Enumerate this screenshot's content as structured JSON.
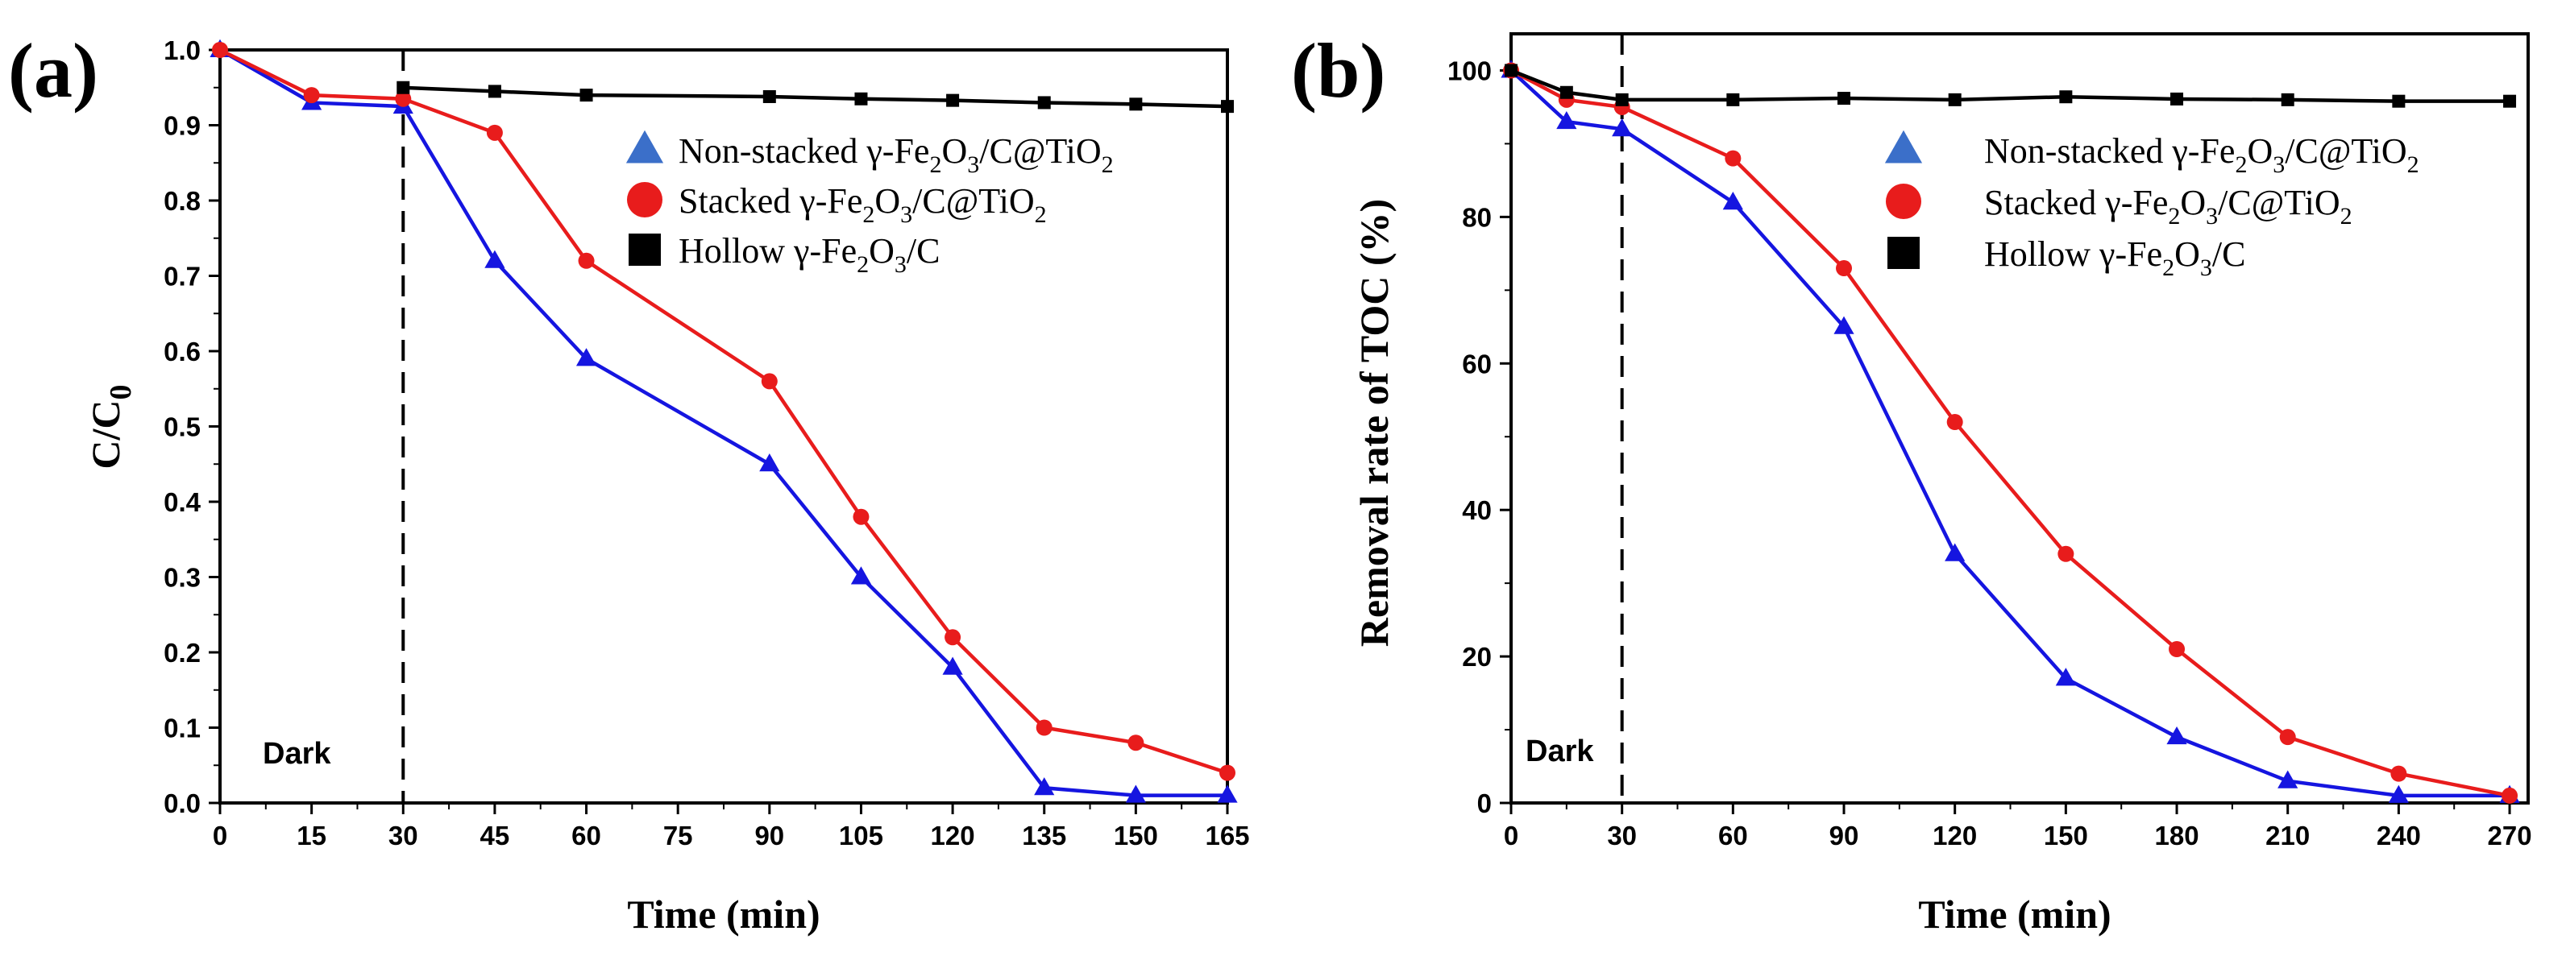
{
  "chart_data": [
    {
      "type": "line",
      "panel_label": "(a)",
      "xlabel": "Time (min)",
      "ylabel_main": "C/C",
      "ylabel_sub": "0",
      "xlim": [
        0,
        165
      ],
      "ylim": [
        0,
        1.0
      ],
      "xticks": [
        0,
        15,
        30,
        45,
        60,
        75,
        90,
        105,
        120,
        135,
        150,
        165
      ],
      "xtick_labels": [
        "0",
        "15",
        "30",
        "45",
        "60",
        "75",
        "90",
        "105",
        "120",
        "135",
        "150",
        "165"
      ],
      "yticks": [
        0,
        0.1,
        0.2,
        0.3,
        0.4,
        0.5,
        0.6,
        0.7,
        0.8,
        0.9,
        1.0
      ],
      "ytick_labels": [
        "0.0",
        "0.1",
        "0.2",
        "0.3",
        "0.4",
        "0.5",
        "0.6",
        "0.7",
        "0.8",
        "0.9",
        "1.0"
      ],
      "dark_line_x": 30,
      "annotation": "Dark",
      "legend_position": "top-right",
      "series": [
        {
          "name": "Non-stacked γ-Fe₂O₃/C@TiO₂",
          "legend_parts": [
            [
              "Non-stacked γ-Fe",
              "n"
            ],
            [
              "2",
              "s"
            ],
            [
              "O",
              "n"
            ],
            [
              "3",
              "s"
            ],
            [
              "/C@TiO",
              "n"
            ],
            [
              "2",
              "s"
            ]
          ],
          "color": "#1515e0",
          "legend_color": "#3b6fc9",
          "marker": "triangle",
          "x": [
            0,
            15,
            30,
            45,
            60,
            90,
            105,
            120,
            135,
            150,
            165
          ],
          "y": [
            1.0,
            0.93,
            0.925,
            0.72,
            0.59,
            0.45,
            0.3,
            0.18,
            0.02,
            0.01,
            0.01
          ]
        },
        {
          "name": "Stacked γ-Fe₂O₃/C@TiO₂",
          "legend_parts": [
            [
              "Stacked γ-Fe",
              "n"
            ],
            [
              "2",
              "s"
            ],
            [
              "O",
              "n"
            ],
            [
              "3",
              "s"
            ],
            [
              "/C@TiO",
              "n"
            ],
            [
              "2",
              "s"
            ]
          ],
          "color": "#e81c1c",
          "legend_color": "#e81c1c",
          "marker": "circle",
          "x": [
            0,
            15,
            30,
            45,
            60,
            90,
            105,
            120,
            135,
            150,
            165
          ],
          "y": [
            1.0,
            0.94,
            0.935,
            0.89,
            0.72,
            0.56,
            0.38,
            0.22,
            0.1,
            0.08,
            0.04
          ]
        },
        {
          "name": "Hollow γ-Fe₂O₃/C",
          "legend_parts": [
            [
              "Hollow γ-Fe",
              "n"
            ],
            [
              "2",
              "s"
            ],
            [
              "O",
              "n"
            ],
            [
              "3",
              "s"
            ],
            [
              "/C",
              "n"
            ]
          ],
          "color": "#000000",
          "legend_color": "#000000",
          "marker": "square",
          "x": [
            30,
            45,
            60,
            90,
            105,
            120,
            135,
            150,
            165
          ],
          "y": [
            0.95,
            0.945,
            0.94,
            0.938,
            0.935,
            0.933,
            0.93,
            0.928,
            0.925
          ]
        }
      ]
    },
    {
      "type": "line",
      "panel_label": "(b)",
      "xlabel": "Time (min)",
      "ylabel_main": "Removal rate of TOC (%)",
      "ylabel_sub": "",
      "xlim": [
        0,
        275
      ],
      "ylim": [
        0,
        105
      ],
      "xticks": [
        0,
        30,
        60,
        90,
        120,
        150,
        180,
        210,
        240,
        270
      ],
      "xtick_labels": [
        "0",
        "30",
        "60",
        "90",
        "120",
        "150",
        "180",
        "210",
        "240",
        "270"
      ],
      "yticks": [
        0,
        20,
        40,
        60,
        80,
        100
      ],
      "ytick_labels": [
        "0",
        "20",
        "40",
        "60",
        "80",
        "100"
      ],
      "dark_line_x": 30,
      "annotation": "Dark",
      "legend_position": "top-right",
      "series": [
        {
          "name": "Non-stacked γ-Fe₂O₃/C@TiO₂",
          "legend_parts": [
            [
              "Non-stacked γ-Fe",
              "n"
            ],
            [
              "2",
              "s"
            ],
            [
              "O",
              "n"
            ],
            [
              "3",
              "s"
            ],
            [
              "/C@TiO",
              "n"
            ],
            [
              "2",
              "s"
            ]
          ],
          "color": "#1515e0",
          "legend_color": "#3b6fc9",
          "marker": "triangle",
          "x": [
            0,
            15,
            30,
            60,
            90,
            120,
            150,
            180,
            210,
            240,
            270
          ],
          "y": [
            100,
            93,
            92,
            82,
            65,
            34,
            17,
            9,
            3,
            1,
            1
          ]
        },
        {
          "name": "Stacked γ-Fe₂O₃/C@TiO₂",
          "legend_parts": [
            [
              "Stacked γ-Fe",
              "n"
            ],
            [
              "2",
              "s"
            ],
            [
              "O",
              "n"
            ],
            [
              "3",
              "s"
            ],
            [
              "/C@TiO",
              "n"
            ],
            [
              "2",
              "s"
            ]
          ],
          "color": "#e81c1c",
          "legend_color": "#e81c1c",
          "marker": "circle",
          "x": [
            0,
            15,
            30,
            60,
            90,
            120,
            150,
            180,
            210,
            240,
            270
          ],
          "y": [
            100,
            96,
            95,
            88,
            73,
            52,
            34,
            21,
            9,
            4,
            1
          ]
        },
        {
          "name": "Hollow γ-Fe₂O₃/C",
          "legend_parts": [
            [
              "Hollow γ-Fe",
              "n"
            ],
            [
              "2",
              "s"
            ],
            [
              "O",
              "n"
            ],
            [
              "3",
              "s"
            ],
            [
              "/C",
              "n"
            ]
          ],
          "color": "#000000",
          "legend_color": "#000000",
          "marker": "square",
          "x": [
            0,
            15,
            30,
            60,
            90,
            120,
            150,
            180,
            210,
            240,
            270
          ],
          "y": [
            100,
            97,
            96,
            96,
            96.2,
            96,
            96.4,
            96.1,
            96,
            95.8,
            95.8
          ]
        }
      ]
    }
  ]
}
